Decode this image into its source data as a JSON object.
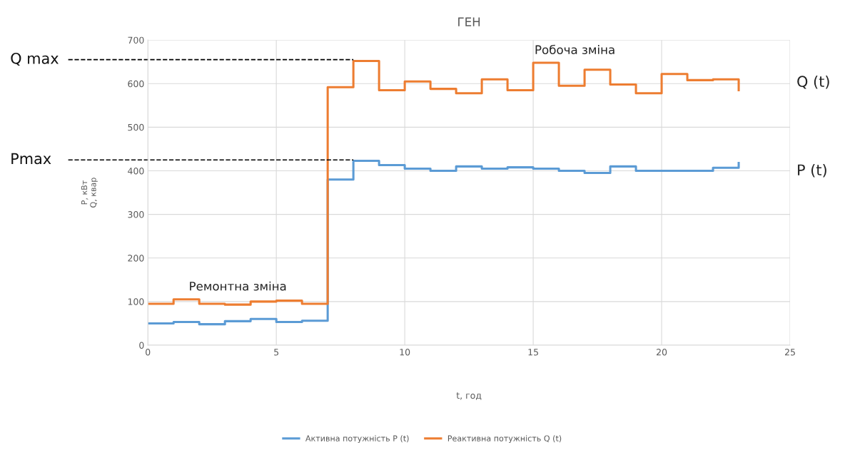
{
  "chart_data": {
    "type": "step",
    "title": "ГЕН",
    "xlabel": "t, год",
    "ylabel": "P, кВт\nQ, квар",
    "x": [
      0,
      1,
      2,
      3,
      4,
      5,
      6,
      7,
      8,
      9,
      10,
      11,
      12,
      13,
      14,
      15,
      16,
      17,
      18,
      19,
      20,
      21,
      22,
      23
    ],
    "series": [
      {
        "name": "Активна потужність P (t)",
        "color": "#5b9bd5",
        "values": [
          50,
          53,
          48,
          55,
          60,
          53,
          56,
          380,
          423,
          413,
          405,
          400,
          410,
          405,
          408,
          405,
          400,
          395,
          410,
          400,
          400,
          400,
          407,
          418
        ]
      },
      {
        "name": "Реактивна потужність Q (t)",
        "color": "#ed7d31",
        "values": [
          95,
          105,
          95,
          93,
          100,
          102,
          95,
          592,
          652,
          585,
          605,
          588,
          578,
          610,
          585,
          648,
          595,
          632,
          598,
          578,
          622,
          608,
          610,
          585
        ]
      }
    ],
    "ref_lines": [
      {
        "axis": "y",
        "value": 655,
        "label": "Q max",
        "color": "#000000",
        "line_style": "dashed"
      },
      {
        "axis": "y",
        "value": 425,
        "label": "Pmax",
        "color": "#000000",
        "line_style": "dashed"
      }
    ],
    "annotations": [
      "Робоча зміна",
      "Ремонтна зміна",
      "Q (t)",
      "P (t)"
    ],
    "xlim": [
      0,
      25
    ],
    "xticks": [
      0,
      5,
      10,
      15,
      20,
      25
    ],
    "ylim": [
      0,
      700
    ],
    "yticks": [
      0,
      100,
      200,
      300,
      400,
      500,
      600,
      700
    ],
    "grid": true,
    "legend": "bottom",
    "line_style": "solid"
  }
}
